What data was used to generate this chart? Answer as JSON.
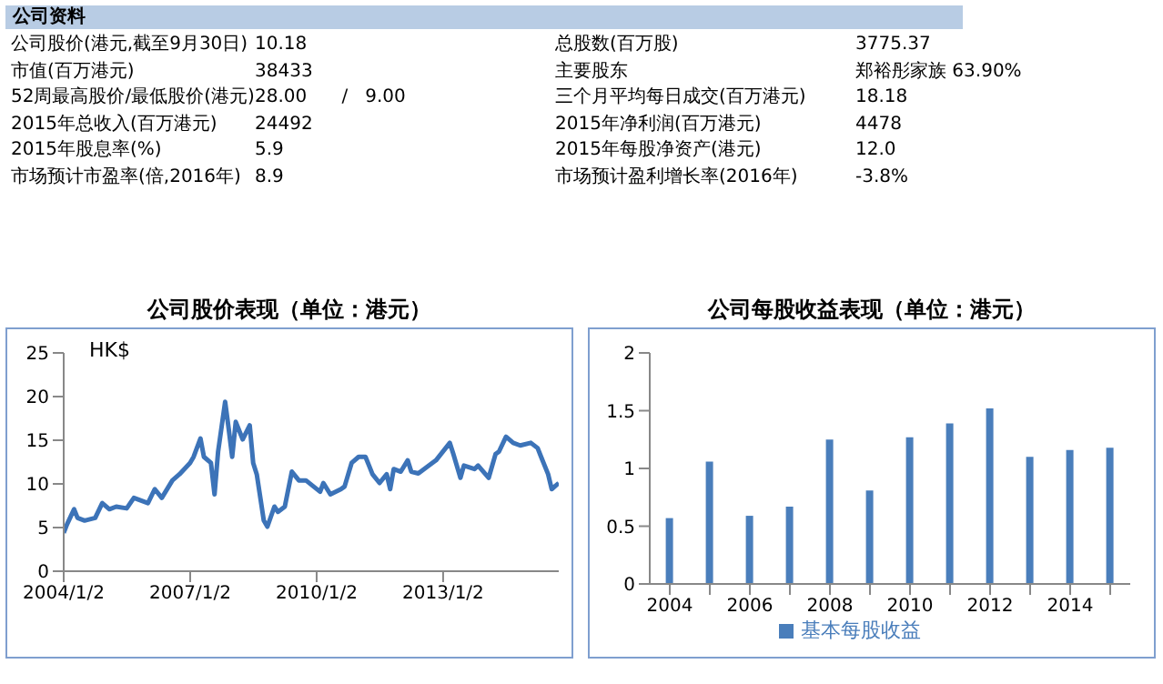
{
  "chart_data": [
    {
      "type": "other",
      "title": "公司资料",
      "annotations": [
        "公司股价(港元,截至9月30日)",
        "10.18",
        "总股数(百万股)",
        "3775.37",
        "市值(百万港元)",
        "38433",
        "主要股东",
        "郑裕彤家族 63.90%",
        "52周最高股价/最低股价(港元)",
        "28.00      /   9.00",
        "三个月平均每日成交(百万港元)",
        "18.18",
        "2015年总收入(百万港元)",
        "24492",
        "2015年净利润(百万港元)",
        "4478",
        "2015年股息率(%)",
        "5.9",
        "2015年每股净资产(港元)",
        "12.0",
        "市场预计市盈率(倍,2016年)",
        "8.9",
        "市场预计盈利增长率(2016年)",
        "-3.8%"
      ]
    },
    {
      "type": "line",
      "title": "公司股价表现（单位：港元）",
      "ylabel": "HK$",
      "marker": "none",
      "xlim": [
        "2004-01-02",
        "2015-10-01"
      ],
      "xticks": [
        {
          "value": "2004-01-02",
          "label": "2004/1/2"
        },
        {
          "value": "2007-01-02",
          "label": "2007/1/2"
        },
        {
          "value": "2010-01-02",
          "label": "2010/1/2"
        },
        {
          "value": "2013-01-02",
          "label": "2013/1/2"
        }
      ],
      "ylim": [
        0,
        25
      ],
      "yticks": [
        0,
        5,
        10,
        15,
        20,
        25
      ],
      "x": [
        "2004-01-02",
        "2004-02",
        "2004-04",
        "2004-05",
        "2004-07",
        "2004-10",
        "2004-12",
        "2005-02",
        "2005-04",
        "2005-07",
        "2005-09",
        "2006-01",
        "2006-03",
        "2006-05",
        "2006-08",
        "2006-10",
        "2007-01",
        "2007-02",
        "2007-04",
        "2007-05",
        "2007-07",
        "2007-08",
        "2007-09",
        "2007-11",
        "2007-12",
        "2008-01",
        "2008-02",
        "2008-04",
        "2008-06",
        "2008-07",
        "2008-08",
        "2008-10",
        "2008-11",
        "2009-01",
        "2009-02",
        "2009-04",
        "2009-06",
        "2009-08",
        "2009-10",
        "2010-02",
        "2010-03",
        "2010-05",
        "2010-08",
        "2010-09",
        "2010-11",
        "2011-01",
        "2011-03",
        "2011-04",
        "2011-05",
        "2011-07",
        "2011-09",
        "2011-10",
        "2011-11",
        "2012-01",
        "2012-03",
        "2012-04",
        "2012-06",
        "2012-09",
        "2012-11",
        "2013-03",
        "2013-04",
        "2013-06",
        "2013-07",
        "2013-10",
        "2013-11",
        "2014-02",
        "2014-04",
        "2014-05",
        "2014-07",
        "2014-09",
        "2014-11",
        "2015-02",
        "2015-04",
        "2015-05",
        "2015-07",
        "2015-08",
        "2015-10"
      ],
      "series": [
        {
          "color": "#3c73b8",
          "values": [
            4.4,
            5.4,
            7.1,
            6.1,
            5.8,
            6.1,
            7.8,
            7.1,
            7.4,
            7.2,
            8.4,
            7.8,
            9.4,
            8.4,
            10.4,
            11.1,
            12.4,
            13.1,
            15.2,
            13.1,
            12.4,
            8.8,
            13.7,
            19.4,
            16.4,
            13.1,
            17.1,
            15.1,
            16.7,
            12.4,
            11.1,
            5.8,
            5.1,
            7.4,
            6.8,
            7.4,
            11.4,
            10.4,
            10.4,
            9.1,
            10.1,
            8.8,
            9.4,
            9.7,
            12.4,
            13.1,
            13.1,
            12.1,
            11.1,
            10.1,
            11.1,
            9.4,
            11.7,
            11.4,
            12.7,
            11.4,
            11.2,
            12.1,
            12.7,
            14.7,
            13.4,
            10.7,
            12.1,
            11.7,
            12.1,
            10.7,
            13.4,
            13.7,
            15.4,
            14.7,
            14.4,
            14.7,
            14.1,
            13.1,
            11.1,
            9.4,
            10.1
          ]
        }
      ]
    },
    {
      "type": "bar",
      "title": "公司每股收益表现（单位：港元）",
      "categories": [
        "2004",
        null,
        "2006",
        null,
        "2008",
        null,
        "2010",
        null,
        "2012",
        null,
        "2014",
        null
      ],
      "ylim": [
        0,
        2
      ],
      "yticks": [
        0,
        0.5,
        1,
        1.5,
        2
      ],
      "legend": "bottom",
      "series": [
        {
          "name": "基本每股收益",
          "color": "#4a7ebb",
          "values": [
            0.57,
            1.06,
            0.59,
            0.67,
            1.25,
            0.81,
            1.27,
            1.39,
            1.52,
            1.1,
            1.16,
            1.18
          ]
        }
      ]
    }
  ]
}
